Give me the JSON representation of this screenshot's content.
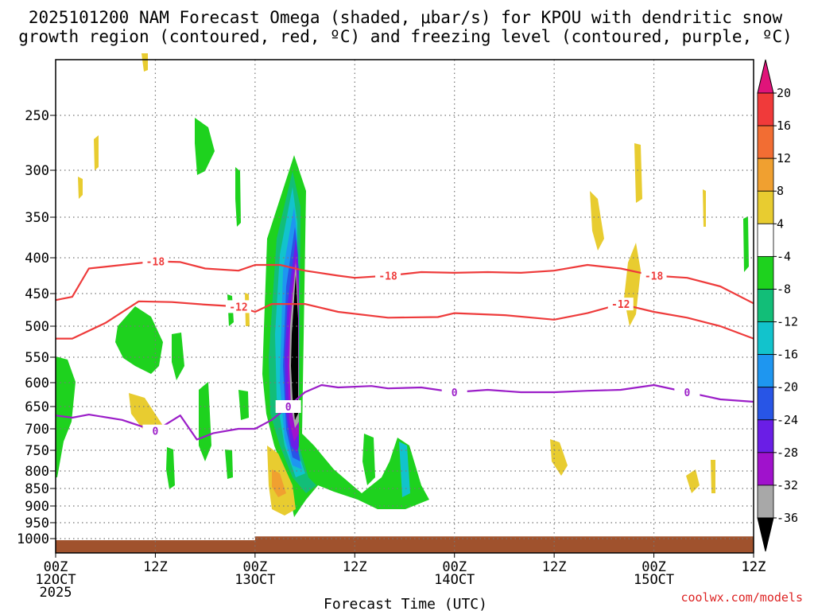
{
  "title_line1": "2025101200 NAM Forecast Omega (shaded, μbar/s) for KPOU with dendritic snow",
  "title_line2": "growth region (contoured, red, ºC) and freezing level (contoured, purple, ºC)",
  "credit": "coolwx.com/models",
  "chart_data": {
    "type": "time-height cross section",
    "title": "2025101200 NAM Forecast Omega (shaded, μbar/s) for KPOU with dendritic snow growth region (contoured, red, ºC) and freezing level (contoured, purple, ºC)",
    "xlabel": "Forecast Time (UTC)",
    "ylabel": "",
    "y_ticks": [
      "250",
      "300",
      "350",
      "400",
      "450",
      "500",
      "550",
      "600",
      "650",
      "700",
      "750",
      "800",
      "850",
      "900",
      "950",
      "1000"
    ],
    "y_values": [
      250,
      300,
      350,
      400,
      450,
      500,
      550,
      600,
      650,
      700,
      750,
      800,
      850,
      900,
      950,
      1000
    ],
    "x_ticks": [
      {
        "hour": 0,
        "line1": "00Z",
        "line2": "12OCT",
        "line3": "2025"
      },
      {
        "hour": 12,
        "line1": "12Z",
        "line2": "",
        "line3": ""
      },
      {
        "hour": 24,
        "line1": "00Z",
        "line2": "13OCT",
        "line3": ""
      },
      {
        "hour": 36,
        "line1": "12Z",
        "line2": "",
        "line3": ""
      },
      {
        "hour": 48,
        "line1": "00Z",
        "line2": "14OCT",
        "line3": ""
      },
      {
        "hour": 60,
        "line1": "12Z",
        "line2": "",
        "line3": ""
      },
      {
        "hour": 72,
        "line1": "00Z",
        "line2": "15OCT",
        "line3": ""
      },
      {
        "hour": 84,
        "line1": "12Z",
        "line2": "",
        "line3": ""
      }
    ],
    "x_range_hours": [
      0,
      84
    ],
    "colorbar": {
      "labels": [
        "20",
        "16",
        "12",
        "8",
        "4",
        "-4",
        "-8",
        "-12",
        "-16",
        "-20",
        "-24",
        "-28",
        "-32",
        "-36"
      ],
      "bins": [
        {
          "range": ">20",
          "color": "#e0147a"
        },
        {
          "range": "16 to 20",
          "color": "#f03a3a"
        },
        {
          "range": "12 to 16",
          "color": "#f26d33"
        },
        {
          "range": "8 to 12",
          "color": "#f0a030"
        },
        {
          "range": "4 to 8",
          "color": "#e8cc30"
        },
        {
          "range": "-4 to 4",
          "color": "#ffffff"
        },
        {
          "range": "-8 to -4",
          "color": "#1ed21e"
        },
        {
          "range": "-12 to -8",
          "color": "#12be78"
        },
        {
          "range": "-16 to -12",
          "color": "#12c3cc"
        },
        {
          "range": "-20 to -16",
          "color": "#1e96f0"
        },
        {
          "range": "-24 to -20",
          "color": "#2855e6"
        },
        {
          "range": "-28 to -24",
          "color": "#6a1ee6"
        },
        {
          "range": "-32 to -28",
          "color": "#a012cc"
        },
        {
          "range": "-36 to -32",
          "color": "#a8a8a8"
        },
        {
          "range": "<-36",
          "color": "#000000"
        }
      ]
    },
    "contours": [
      {
        "name": "-18",
        "color": "#ee3b3b",
        "labels": [
          "-18",
          "-18",
          "-18"
        ],
        "points": [
          [
            0,
            460
          ],
          [
            2,
            455
          ],
          [
            4,
            415
          ],
          [
            8,
            410
          ],
          [
            12,
            405
          ],
          [
            15,
            406
          ],
          [
            18,
            415
          ],
          [
            22,
            418
          ],
          [
            24,
            410
          ],
          [
            27,
            410
          ],
          [
            30,
            418
          ],
          [
            34,
            425
          ],
          [
            36,
            428
          ],
          [
            40,
            425
          ],
          [
            44,
            420
          ],
          [
            48,
            421
          ],
          [
            52,
            420
          ],
          [
            56,
            421
          ],
          [
            60,
            418
          ],
          [
            64,
            410
          ],
          [
            68,
            415
          ],
          [
            72,
            425
          ],
          [
            76,
            428
          ],
          [
            80,
            440
          ],
          [
            84,
            465
          ]
        ]
      },
      {
        "name": "-12",
        "color": "#ee3b3b",
        "labels": [
          "-12",
          "-12"
        ],
        "points": [
          [
            0,
            520
          ],
          [
            2,
            520
          ],
          [
            6,
            495
          ],
          [
            10,
            462
          ],
          [
            14,
            463
          ],
          [
            18,
            467
          ],
          [
            22,
            470
          ],
          [
            24,
            478
          ],
          [
            26,
            466
          ],
          [
            30,
            466
          ],
          [
            34,
            478
          ],
          [
            40,
            487
          ],
          [
            46,
            486
          ],
          [
            48,
            480
          ],
          [
            54,
            483
          ],
          [
            60,
            490
          ],
          [
            64,
            480
          ],
          [
            68,
            466
          ],
          [
            72,
            478
          ],
          [
            76,
            487
          ],
          [
            80,
            500
          ],
          [
            84,
            520
          ]
        ]
      },
      {
        "name": "0 (freezing level)",
        "color": "#9b1ec8",
        "labels": [
          "0",
          "0",
          "0",
          "0"
        ],
        "points": [
          [
            0,
            670
          ],
          [
            2,
            675
          ],
          [
            4,
            668
          ],
          [
            8,
            680
          ],
          [
            12,
            705
          ],
          [
            15,
            670
          ],
          [
            17,
            725
          ],
          [
            19,
            710
          ],
          [
            22,
            700
          ],
          [
            24,
            700
          ],
          [
            26,
            680
          ],
          [
            28,
            650
          ],
          [
            30,
            620
          ],
          [
            32,
            605
          ],
          [
            34,
            610
          ],
          [
            38,
            607
          ],
          [
            40,
            612
          ],
          [
            44,
            610
          ],
          [
            48,
            620
          ],
          [
            52,
            615
          ],
          [
            56,
            620
          ],
          [
            60,
            620
          ],
          [
            64,
            617
          ],
          [
            68,
            615
          ],
          [
            72,
            605
          ],
          [
            76,
            620
          ],
          [
            80,
            635
          ],
          [
            84,
            640
          ]
        ]
      }
    ],
    "features": [
      {
        "label": "strong upward motion core (< -36 μbar/s)",
        "time_hours": [
          28.7,
          29.8
        ],
        "pressure": [
          380,
          720
        ]
      },
      {
        "label": "moderate upward motion (green, -4 to -8)",
        "time_hours": [
          6,
          47
        ],
        "pressure": [
          300,
          930
        ]
      },
      {
        "label": "downward motion (yellow/orange, 4 to 12)",
        "time_hours": [
          26,
          28
        ],
        "pressure": [
          740,
          880
        ]
      }
    ],
    "terrain": {
      "color": "#a0522d",
      "pressure_top": [
        1005,
        993
      ]
    }
  }
}
